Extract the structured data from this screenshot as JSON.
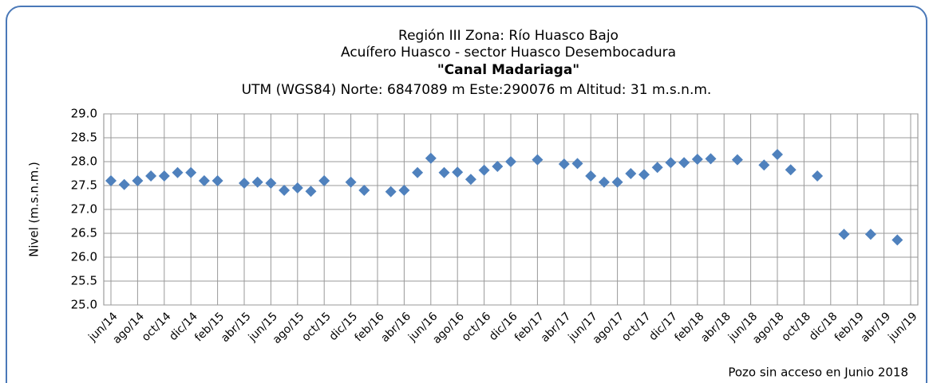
{
  "chart_data": {
    "type": "scatter",
    "title": [
      "Región III  Zona: Río Huasco Bajo",
      "Acuífero Huasco - sector Huasco Desembocadura",
      "\"Canal Madariaga\"",
      "UTM (WGS84) Norte: 6847089 m   Este:290076 m   Altitud: 31 m.s.n.m."
    ],
    "y_label": "Nivel (m.s.n.m.)",
    "annotation": "Pozo sin acceso en Junio 2018",
    "categories": [
      "jun/14",
      null,
      "ago/14",
      null,
      "oct/14",
      null,
      "dic/14",
      null,
      "feb/15",
      null,
      "abr/15",
      null,
      "jun/15",
      null,
      "ago/15",
      null,
      "oct/15",
      null,
      "dic/15",
      null,
      "feb/16",
      null,
      "abr/16",
      null,
      "jun/16",
      null,
      "ago/16",
      null,
      "oct/16",
      null,
      "dic/16",
      null,
      "feb/17",
      null,
      "abr/17",
      null,
      "jun/17",
      null,
      "ago/17",
      null,
      "oct/17",
      null,
      "dic/17",
      null,
      "feb/18",
      null,
      "abr/18",
      null,
      "jun/18",
      null,
      "ago/18",
      null,
      "oct/18",
      null,
      "dic/18",
      null,
      "feb/19",
      null,
      "abr/19",
      null,
      "jun/19"
    ],
    "values": [
      27.6,
      27.52,
      27.6,
      27.7,
      27.7,
      27.77,
      27.77,
      27.6,
      27.6,
      null,
      27.55,
      27.57,
      27.55,
      27.4,
      27.45,
      27.38,
      27.6,
      null,
      27.57,
      27.4,
      null,
      27.37,
      27.4,
      27.77,
      28.07,
      27.77,
      27.78,
      27.63,
      27.82,
      27.9,
      28.0,
      null,
      28.04,
      null,
      27.95,
      27.96,
      27.7,
      27.57,
      27.57,
      27.75,
      27.73,
      27.88,
      27.98,
      27.98,
      28.05,
      28.06,
      null,
      28.04,
      null,
      27.93,
      28.15,
      27.83,
      null,
      27.7,
      null,
      26.48,
      null,
      26.48,
      null,
      26.36,
      null
    ],
    "color": "#4f81bd",
    "ylim": [
      25.0,
      29.0
    ],
    "yticks": [
      {
        "value": 25.0,
        "label": "25.0"
      },
      {
        "value": 25.5,
        "label": "25.5"
      },
      {
        "value": 26.0,
        "label": "26.0"
      },
      {
        "value": 26.5,
        "label": "26.5"
      },
      {
        "value": 27.0,
        "label": "27.0"
      },
      {
        "value": 27.5,
        "label": "27.5"
      },
      {
        "value": 28.0,
        "label": "28.0"
      },
      {
        "value": 28.5,
        "label": "28.5"
      },
      {
        "value": 29.0,
        "label": "29.0"
      }
    ],
    "grid": true
  }
}
